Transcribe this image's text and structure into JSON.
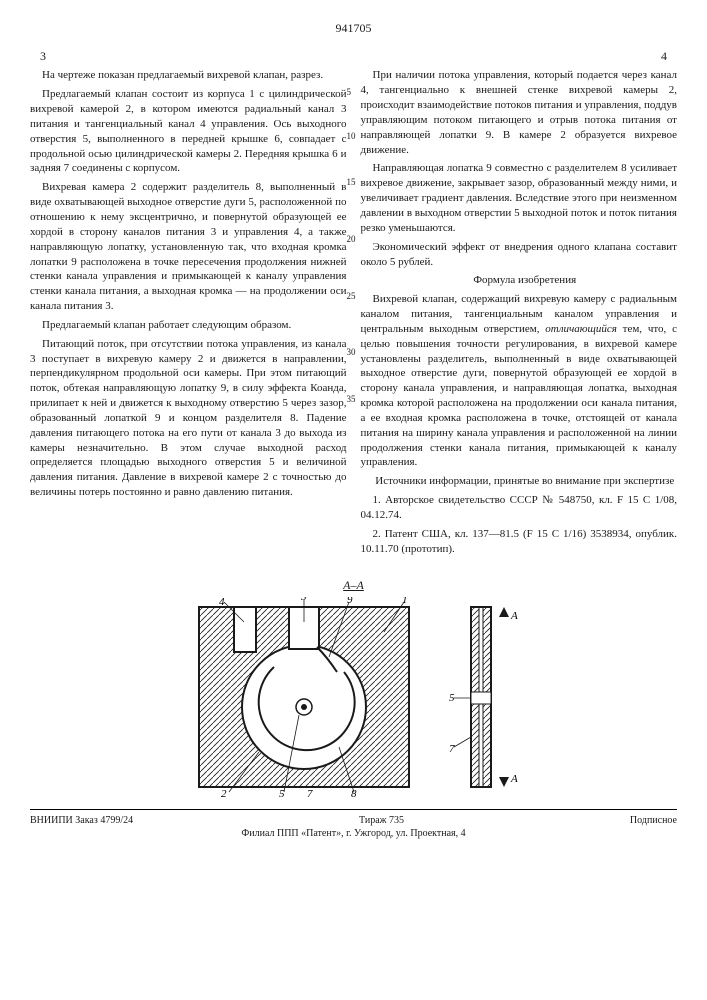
{
  "patent_number": "941705",
  "page_left": "3",
  "page_right": "4",
  "line_numbers": [
    5,
    10,
    15,
    20,
    25,
    30,
    35
  ],
  "left_paragraphs": [
    "На чертеже показан предлагаемый вихревой клапан, разрез.",
    "Предлагаемый клапан состоит из корпуса 1 с цилиндрической вихревой камерой 2, в котором имеются радиальный канал 3 питания и тангенциальный канал 4 управления. Ось выходного отверстия 5, выполненного в передней крышке 6, совпадает с продольной осью цилиндрической камеры 2. Передняя крышка 6 и задняя 7 соединены с корпусом.",
    "Вихревая камера 2 содержит разделитель 8, выполненный в виде охватывающей выходное отверстие дуги 5, расположенной по отношению к нему эксцентрично, и повернутой образующей ее хордой в сторону каналов питания 3 и управления 4, а также направляющую лопатку, установленную так, что входная кромка лопатки 9 расположена в точке пересечения продолжения нижней стенки канала управления и примыкающей к каналу управления стенки канала питания, а выходная кромка — на продолжении оси канала питания 3.",
    "Предлагаемый клапан работает следующим образом.",
    "Питающий поток, при отсутствии потока управления, из канала 3 поступает в вихревую камеру 2 и движется в направлении, перпендикулярном продольной оси камеры. При этом питающий поток, обтекая направляющую лопатку 9, в силу эффекта Коанда, прилипает к ней и движется к выходному отверстию 5 через зазор, образованный лопаткой 9 и концом разделителя 8. Падение давления питающего потока на его пути от канала 3 до выхода из камеры незначительно. В этом случае выходной расход определяется площадью выходного отверстия 5 и величиной давления питания. Давление в вихревой камере 2 с точностью до величины потерь постоянно и равно давлению питания."
  ],
  "right_paragraphs_intro": [
    "При наличии потока управления, который подается через канал 4, тангенциально к внешней стенке вихревой камеры 2, происходит взаимодействие потоков питания и управления, поддув управляющим потоком питающего и отрыв потока питания от направляющей лопатки 9. В камере 2 образуется вихревое движение.",
    "Направляющая лопатка 9 совместно с разделителем 8 усиливает вихревое движение, закрывает зазор, образованный между ними, и увеличивает градиент давления. Вследствие этого при неизменном давлении в выходном отверстии 5 выходной поток и поток питания резко уменьшаются.",
    "Экономический эффект от внедрения одного клапана составит около 5 рублей."
  ],
  "claim_heading": "Формула изобретения",
  "claim_text": "Вихревой клапан, содержащий вихревую камеру с радиальным каналом питания, тангенциальным каналом управления и центральным выходным отверстием, <em>отличающийся</em> тем, что, с целью повышения точности регулирования, в вихревой камере установлены разделитель, выполненный в виде охватывающей выходное отверстие дуги, повернутой образующей ее хордой в сторону канала управления, и направляющая лопатка, выходная кромка которой расположена на продолжении оси канала питания, а ее входная кромка расположена в точке, отстоящей от канала питания на ширину канала управления и расположенной на линии продолжения стенки канала питания, примыкающей к каналу управления.",
  "sources_heading": "Источники информации,\nпринятые во внимание при экспертизе",
  "sources": [
    "1. Авторское свидетельство СССР № 548750, кл. F 15 C 1/08, 04.12.74.",
    "2. Патент США, кл. 137—81.5 (F 15 C 1/16) 3538934, опублик. 10.11.70 (прототип)."
  ],
  "figure": {
    "section_label": "А–А",
    "arrow_label_top": "А",
    "arrow_label_bottom": "А",
    "main_labels": [
      "4",
      "3",
      "9",
      "1",
      "2",
      "5",
      "8",
      "7"
    ],
    "side_labels": [
      "5",
      "7"
    ],
    "colors": {
      "stroke": "#1a1a1a",
      "hatch": "#1a1a1a",
      "bg": "#ffffff"
    }
  },
  "footer": {
    "left": "ВНИИПИ    Заказ 4799/24",
    "center": "Тираж 735",
    "right": "Подписное",
    "line2": "Филиал ППП «Патент», г. Ужгород, ул. Проектная, 4"
  }
}
